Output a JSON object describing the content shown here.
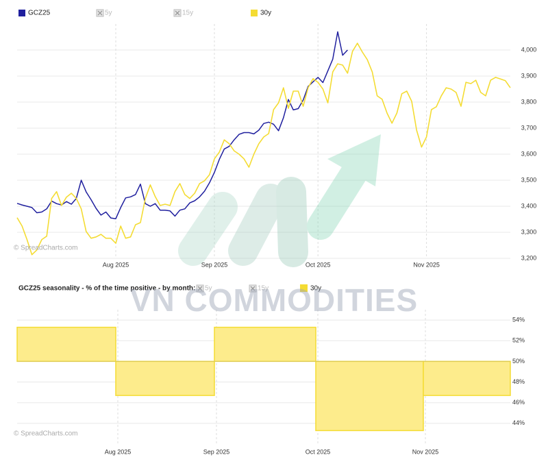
{
  "watermark_text": "VN COMMODITIES",
  "chart_data": [
    {
      "type": "line",
      "categories": [
        null,
        null,
        null,
        null,
        null,
        null,
        null,
        null,
        null,
        null,
        null,
        null,
        null,
        null,
        null,
        null,
        null,
        null,
        null,
        null,
        "Aug 2025",
        null,
        null,
        null,
        null,
        null,
        null,
        null,
        null,
        null,
        null,
        null,
        null,
        null,
        null,
        null,
        null,
        null,
        null,
        null,
        "Sep 2025",
        null,
        null,
        null,
        null,
        null,
        null,
        null,
        null,
        null,
        null,
        null,
        null,
        null,
        null,
        null,
        null,
        null,
        null,
        null,
        null,
        "Oct 2025",
        null,
        null,
        null,
        null,
        null,
        null,
        null,
        null,
        null,
        null,
        null,
        null,
        null,
        null,
        null,
        null,
        null,
        null,
        null,
        null,
        null,
        "Nov 2025",
        null,
        null,
        null,
        null,
        null,
        null,
        null,
        null,
        null,
        null,
        null,
        null,
        null,
        null,
        null,
        null,
        null
      ],
      "series": [
        {
          "name": "GCZ25",
          "color": "#1f1f9e",
          "values": [
            3411,
            3405,
            3400,
            3395,
            3375,
            3378,
            3390,
            3420,
            3410,
            3405,
            3418,
            3408,
            3430,
            3500,
            3455,
            3425,
            3392,
            3366,
            3378,
            3355,
            3352,
            3395,
            3432,
            3436,
            3445,
            3485,
            3410,
            3400,
            3410,
            3385,
            3385,
            3382,
            3362,
            3385,
            3390,
            3413,
            3421,
            3436,
            3458,
            3490,
            3530,
            3580,
            3620,
            3630,
            3655,
            3676,
            3683,
            3683,
            3678,
            3692,
            3718,
            3723,
            3715,
            3690,
            3740,
            3810,
            3770,
            3775,
            3808,
            3860,
            3878,
            3895,
            3875,
            3920,
            3965,
            4070,
            3980,
            4000,
            null,
            null,
            null,
            null,
            null,
            null,
            null,
            null,
            null,
            null,
            null,
            null,
            null,
            null,
            null,
            null,
            null,
            null,
            null,
            null,
            null,
            null,
            null,
            null,
            null,
            null,
            null,
            null,
            null,
            null,
            null,
            null,
            null
          ]
        },
        {
          "name": "30y",
          "color": "#f4dc33",
          "values": [
            3356,
            3324,
            3272,
            3214,
            3232,
            3272,
            3285,
            3430,
            3456,
            3403,
            3435,
            3450,
            3430,
            3390,
            3303,
            3277,
            3282,
            3292,
            3277,
            3277,
            3258,
            3324,
            3277,
            3282,
            3329,
            3337,
            3430,
            3482,
            3437,
            3403,
            3408,
            3403,
            3456,
            3487,
            3445,
            3430,
            3450,
            3487,
            3498,
            3521,
            3582,
            3608,
            3655,
            3640,
            3613,
            3600,
            3582,
            3550,
            3600,
            3640,
            3666,
            3679,
            3771,
            3797,
            3855,
            3776,
            3842,
            3842,
            3784,
            3855,
            3890,
            3876,
            3850,
            3797,
            3916,
            3947,
            3942,
            3911,
            3995,
            4026,
            3992,
            3963,
            3916,
            3824,
            3811,
            3758,
            3719,
            3758,
            3832,
            3842,
            3803,
            3692,
            3627,
            3666,
            3771,
            3782,
            3824,
            3855,
            3850,
            3837,
            3784,
            3876,
            3871,
            3884,
            3837,
            3824,
            3884,
            3895,
            3889,
            3882,
            3855
          ]
        }
      ],
      "hidden_series": [
        "5y",
        "15y"
      ],
      "ylim": [
        3200,
        4100
      ],
      "yticks": [
        {
          "value": 3200,
          "label": "3,200"
        },
        {
          "value": 3300,
          "label": "3,300"
        },
        {
          "value": 3400,
          "label": "3,400"
        },
        {
          "value": 3500,
          "label": "3,500"
        },
        {
          "value": 3600,
          "label": "3,600"
        },
        {
          "value": 3700,
          "label": "3,700"
        },
        {
          "value": 3800,
          "label": "3,800"
        },
        {
          "value": 3900,
          "label": "3,900"
        },
        {
          "value": 4000,
          "label": "4,000"
        }
      ],
      "grid": true,
      "legend_position": "top-left",
      "watermark": "© SpreadCharts.com"
    },
    {
      "type": "step-area",
      "title": "GCZ25 seasonality - % of the time positive - by month:",
      "categories": [
        null,
        "Aug 2025",
        "Sep 2025",
        "Oct 2025",
        "Nov 2025"
      ],
      "series": [
        {
          "name": "30y",
          "color": "#f4dc33",
          "fill": "#fdec8c",
          "values": [
            53.3,
            46.7,
            53.3,
            43.3,
            46.7
          ]
        }
      ],
      "hidden_series": [
        "5y",
        "15y"
      ],
      "baseline": 50,
      "ylim": [
        42,
        55
      ],
      "yticks": [
        {
          "value": 44,
          "label": "44%"
        },
        {
          "value": 46,
          "label": "46%"
        },
        {
          "value": 48,
          "label": "48%"
        },
        {
          "value": 50,
          "label": "50%"
        },
        {
          "value": 52,
          "label": "52%"
        },
        {
          "value": 54,
          "label": "54%"
        }
      ],
      "grid": true,
      "watermark": "© SpreadCharts.com"
    }
  ]
}
